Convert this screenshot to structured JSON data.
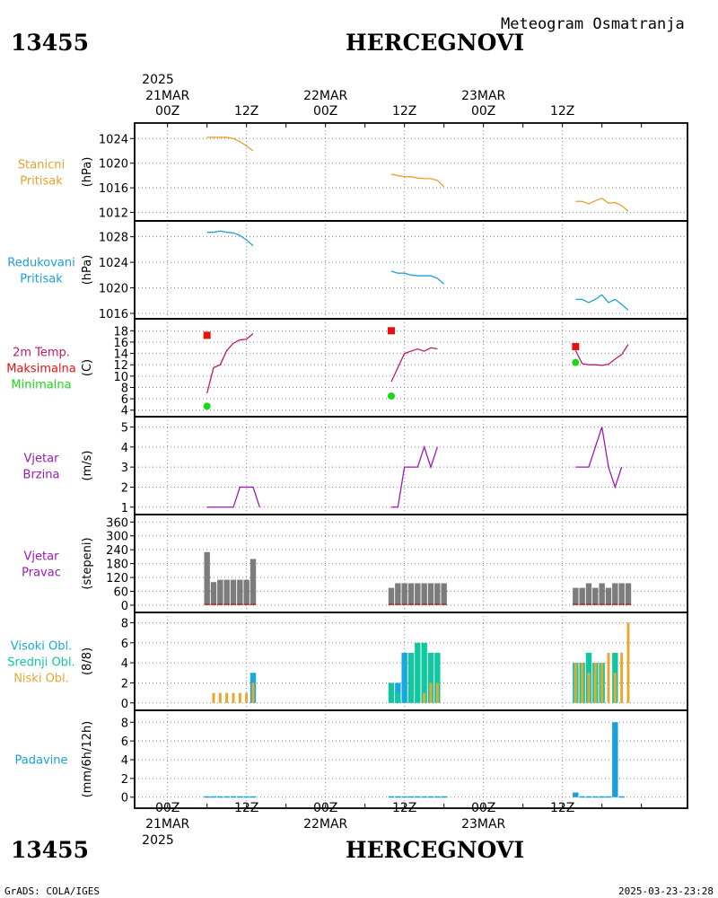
{
  "header": {
    "station_id": "13455",
    "station_name": "HERCEGNOVI",
    "product": "Meteogram Osmatranja"
  },
  "footer": {
    "station_id": "13455",
    "station_name": "HERCEGNOVI",
    "credit": "GrADS: COLA/IGES",
    "timestamp": "2025-03-23-23:28"
  },
  "colors": {
    "pressure": "#e8a030",
    "reduced_pressure": "#1ea0d8",
    "temperature": "#c0186c",
    "tmax": "#e81010",
    "tmin": "#18d818",
    "wind": "#a018b8",
    "wind_dir": "#7c7c7c",
    "cloud_high": "#18a8e0",
    "cloud_mid": "#10c8a0",
    "cloud_low": "#e8a830",
    "precip": "#18a0d8"
  },
  "time_axis": {
    "top_year": "2025",
    "bottom_year": "2025",
    "day_labels": [
      "21MAR",
      "22MAR",
      "23MAR"
    ],
    "hour_labels": [
      "00Z",
      "12Z",
      "00Z",
      "12Z",
      "00Z",
      "12Z"
    ],
    "range_hours": [
      -5,
      79
    ]
  },
  "chart_data": [
    {
      "type": "line",
      "label_lines": [
        "Stanicni",
        "Pritisak"
      ],
      "ylabel": "(hPa)",
      "ylim": [
        1011.5,
        1025.5
      ],
      "yticks": [
        1012,
        1016,
        1020,
        1024
      ],
      "grid": true,
      "series": [
        {
          "color_key": "pressure",
          "segments": [
            [
              [
                6,
                1024.2
              ],
              [
                7,
                1024.2
              ],
              [
                8,
                1024.2
              ],
              [
                9,
                1024.2
              ],
              [
                10,
                1024.0
              ],
              [
                11,
                1023.5
              ],
              [
                12,
                1022.8
              ],
              [
                13,
                1022.0
              ]
            ],
            [
              [
                34,
                1018.2
              ],
              [
                35,
                1018.0
              ],
              [
                36,
                1017.8
              ],
              [
                37,
                1017.8
              ],
              [
                38,
                1017.6
              ],
              [
                39,
                1017.5
              ],
              [
                40,
                1017.5
              ],
              [
                41,
                1017.2
              ],
              [
                42,
                1016.2
              ]
            ],
            [
              [
                62,
                1013.8
              ],
              [
                63,
                1013.8
              ],
              [
                64,
                1013.4
              ],
              [
                65,
                1013.9
              ],
              [
                66,
                1014.3
              ],
              [
                67,
                1013.5
              ],
              [
                68,
                1013.6
              ],
              [
                69,
                1013.1
              ],
              [
                70,
                1012.2
              ]
            ]
          ]
        }
      ]
    },
    {
      "type": "line",
      "label_lines": [
        "Redukovani",
        "Pritisak"
      ],
      "ylabel": "(hPa)",
      "ylim": [
        1016,
        1029.5
      ],
      "yticks": [
        1016,
        1020,
        1024,
        1028
      ],
      "grid": true,
      "series": [
        {
          "color_key": "reduced_pressure",
          "segments": [
            [
              [
                6,
                1028.7
              ],
              [
                7,
                1028.7
              ],
              [
                8,
                1028.9
              ],
              [
                9,
                1028.7
              ],
              [
                10,
                1028.6
              ],
              [
                11,
                1028.2
              ],
              [
                12,
                1027.5
              ],
              [
                13,
                1026.6
              ]
            ],
            [
              [
                34,
                1022.6
              ],
              [
                35,
                1022.3
              ],
              [
                36,
                1022.3
              ],
              [
                37,
                1022.0
              ],
              [
                38,
                1021.9
              ],
              [
                39,
                1021.9
              ],
              [
                40,
                1021.9
              ],
              [
                41,
                1021.5
              ],
              [
                42,
                1020.6
              ]
            ],
            [
              [
                62,
                1018.2
              ],
              [
                63,
                1018.2
              ],
              [
                64,
                1017.7
              ],
              [
                65,
                1018.2
              ],
              [
                66,
                1018.9
              ],
              [
                67,
                1017.7
              ],
              [
                68,
                1018.2
              ],
              [
                69,
                1017.4
              ],
              [
                70,
                1016.5
              ]
            ]
          ]
        }
      ]
    },
    {
      "type": "line",
      "label_lines": [
        "2m Temp.",
        "Maksimalna",
        "Minimalna"
      ],
      "label_color_keys": [
        "temperature",
        "tmax",
        "tmin"
      ],
      "ylabel": "(C)",
      "ylim": [
        3.8,
        19
      ],
      "yticks": [
        4,
        6,
        8,
        10,
        12,
        14,
        16,
        18
      ],
      "grid": true,
      "series": [
        {
          "color_key": "temperature",
          "segments": [
            [
              [
                6,
                7.0
              ],
              [
                7,
                11.5
              ],
              [
                8,
                12.0
              ],
              [
                9,
                14.5
              ],
              [
                10,
                15.8
              ],
              [
                11,
                16.4
              ],
              [
                12,
                16.5
              ],
              [
                13,
                17.5
              ]
            ],
            [
              [
                34,
                9.0
              ],
              [
                35,
                11.5
              ],
              [
                36,
                14.0
              ],
              [
                37,
                14.4
              ],
              [
                38,
                14.8
              ],
              [
                39,
                14.4
              ],
              [
                40,
                15.0
              ],
              [
                41,
                14.8
              ]
            ],
            [
              [
                62,
                14.5
              ],
              [
                63,
                12.2
              ],
              [
                64,
                12.0
              ],
              [
                65,
                12.0
              ],
              [
                66,
                11.9
              ],
              [
                67,
                12.1
              ],
              [
                68,
                13.0
              ],
              [
                69,
                13.8
              ],
              [
                70,
                15.6
              ]
            ]
          ]
        }
      ],
      "tmax_points": [
        [
          6,
          17.2
        ],
        [
          34,
          18.0
        ],
        [
          62,
          15.2
        ]
      ],
      "tmin_points": [
        [
          6,
          4.7
        ],
        [
          34,
          6.5
        ],
        [
          62,
          12.4
        ]
      ]
    },
    {
      "type": "line",
      "label_lines": [
        "Vjetar",
        "Brzina"
      ],
      "ylabel": "(m/s)",
      "ylim": [
        0.9,
        5.2
      ],
      "yticks": [
        1,
        2,
        3,
        4,
        5
      ],
      "grid": true,
      "series": [
        {
          "color_key": "wind",
          "segments": [
            [
              [
                6,
                1
              ],
              [
                7,
                1
              ],
              [
                8,
                1
              ],
              [
                9,
                1
              ],
              [
                10,
                1
              ],
              [
                11,
                2
              ],
              [
                12,
                2
              ],
              [
                13,
                2
              ],
              [
                14,
                1
              ]
            ],
            [
              [
                34,
                1
              ],
              [
                35,
                1
              ],
              [
                36,
                3
              ],
              [
                37,
                3
              ],
              [
                38,
                3
              ],
              [
                39,
                4
              ],
              [
                40,
                3
              ],
              [
                41,
                4
              ]
            ],
            [
              [
                62,
                3
              ],
              [
                63,
                3
              ],
              [
                64,
                3
              ],
              [
                65,
                4
              ],
              [
                66,
                5
              ],
              [
                67,
                3
              ],
              [
                68,
                2
              ],
              [
                69,
                3
              ]
            ]
          ]
        }
      ]
    },
    {
      "type": "bar",
      "label_lines": [
        "Vjetar",
        "Pravac"
      ],
      "ylabel": "(stepeni)",
      "ylim": [
        -8,
        365
      ],
      "yticks": [
        0,
        60,
        120,
        180,
        240,
        300,
        360
      ],
      "grid": true,
      "bars": [
        {
          "x": 6,
          "v": 230
        },
        {
          "x": 7,
          "v": 100
        },
        {
          "x": 8,
          "v": 110
        },
        {
          "x": 9,
          "v": 110
        },
        {
          "x": 10,
          "v": 110
        },
        {
          "x": 11,
          "v": 110
        },
        {
          "x": 12,
          "v": 110
        },
        {
          "x": 13,
          "v": 200
        },
        {
          "x": 34,
          "v": 75
        },
        {
          "x": 35,
          "v": 95
        },
        {
          "x": 36,
          "v": 95
        },
        {
          "x": 37,
          "v": 95
        },
        {
          "x": 38,
          "v": 95
        },
        {
          "x": 39,
          "v": 95
        },
        {
          "x": 40,
          "v": 95
        },
        {
          "x": 41,
          "v": 95
        },
        {
          "x": 42,
          "v": 95
        },
        {
          "x": 62,
          "v": 75
        },
        {
          "x": 63,
          "v": 75
        },
        {
          "x": 64,
          "v": 95
        },
        {
          "x": 65,
          "v": 75
        },
        {
          "x": 66,
          "v": 95
        },
        {
          "x": 67,
          "v": 75
        },
        {
          "x": 68,
          "v": 95
        },
        {
          "x": 69,
          "v": 95
        },
        {
          "x": 70,
          "v": 95
        }
      ]
    },
    {
      "type": "bar",
      "label_lines": [
        "Visoki Obl.",
        "Srednji Obl.",
        "Niski Obl."
      ],
      "label_color_keys": [
        "cloud_high",
        "cloud_mid",
        "cloud_low"
      ],
      "ylabel": "(8/8)",
      "ylim": [
        -0.2,
        8.4
      ],
      "yticks": [
        0,
        2,
        4,
        6,
        8
      ],
      "grid": true,
      "cloud_bars": [
        {
          "x": 7,
          "low": 1
        },
        {
          "x": 8,
          "low": 1
        },
        {
          "x": 9,
          "low": 1
        },
        {
          "x": 10,
          "low": 1
        },
        {
          "x": 11,
          "low": 1
        },
        {
          "x": 12,
          "low": 1
        },
        {
          "x": 13,
          "low": 2,
          "high": 3
        },
        {
          "x": 34,
          "mid": 2
        },
        {
          "x": 35,
          "mid": 1,
          "high": 2
        },
        {
          "x": 36,
          "high": 5
        },
        {
          "x": 37,
          "mid": 5
        },
        {
          "x": 38,
          "mid": 6
        },
        {
          "x": 39,
          "mid": 6,
          "low": 1
        },
        {
          "x": 40,
          "mid": 5,
          "low": 2
        },
        {
          "x": 41,
          "mid": 5,
          "low": 2
        },
        {
          "x": 62,
          "mid": 4,
          "low": 4
        },
        {
          "x": 63,
          "mid": 4,
          "low": 4
        },
        {
          "x": 64,
          "mid": 5,
          "low": 3
        },
        {
          "x": 65,
          "mid": 4,
          "low": 4
        },
        {
          "x": 66,
          "mid": 4,
          "low": 4
        },
        {
          "x": 67,
          "low": 5
        },
        {
          "x": 68,
          "mid": 5,
          "low": 3
        },
        {
          "x": 69,
          "low": 5
        },
        {
          "x": 70,
          "low": 8
        }
      ]
    },
    {
      "type": "bar",
      "label_lines": [
        "Padavine"
      ],
      "ylabel": "(mm/6h/12h)",
      "ylim": [
        -0.6,
        8.6
      ],
      "yticks": [
        0,
        2,
        4,
        6,
        8
      ],
      "grid": true,
      "bars": [
        {
          "x": 6,
          "v": 0.05
        },
        {
          "x": 7,
          "v": 0.05
        },
        {
          "x": 8,
          "v": 0.05
        },
        {
          "x": 9,
          "v": 0.05
        },
        {
          "x": 10,
          "v": 0.05
        },
        {
          "x": 11,
          "v": 0.05
        },
        {
          "x": 12,
          "v": 0.05
        },
        {
          "x": 13,
          "v": 0.05
        },
        {
          "x": 34,
          "v": 0.05
        },
        {
          "x": 35,
          "v": 0.05
        },
        {
          "x": 36,
          "v": 0.05
        },
        {
          "x": 37,
          "v": 0.05
        },
        {
          "x": 38,
          "v": 0.05
        },
        {
          "x": 39,
          "v": 0.05
        },
        {
          "x": 40,
          "v": 0.05
        },
        {
          "x": 41,
          "v": 0.05
        },
        {
          "x": 42,
          "v": 0.05
        },
        {
          "x": 62,
          "v": 0.5
        },
        {
          "x": 63,
          "v": 0.05
        },
        {
          "x": 64,
          "v": 0.05
        },
        {
          "x": 65,
          "v": 0.05
        },
        {
          "x": 66,
          "v": 0.05
        },
        {
          "x": 67,
          "v": 0.05
        },
        {
          "x": 68,
          "v": 8.0
        },
        {
          "x": 69,
          "v": 0.05
        }
      ]
    }
  ]
}
